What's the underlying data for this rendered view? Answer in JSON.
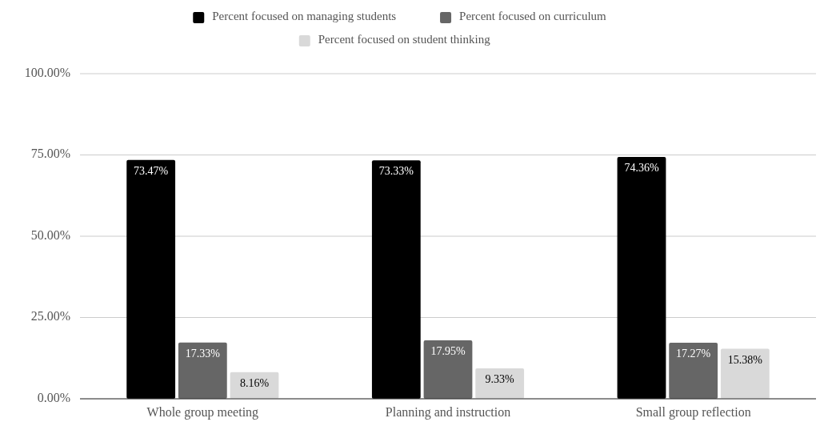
{
  "chart_data": {
    "type": "bar",
    "categories": [
      "Whole group meeting",
      "Planning and instruction",
      "Small group reflection"
    ],
    "series": [
      {
        "name": "Percent focused on managing students",
        "color": "#000000",
        "values": [
          73.47,
          73.33,
          74.36
        ],
        "value_labels": [
          "73.47%",
          "73.33%",
          "74.36%"
        ]
      },
      {
        "name": "Percent focused on curriculum",
        "color": "#666666",
        "values": [
          17.33,
          17.95,
          17.27
        ],
        "value_labels": [
          "17.33%",
          "17.95%",
          "17.27%"
        ]
      },
      {
        "name": "Percent focused on student thinking",
        "color": "#d9d9d9",
        "values": [
          8.16,
          9.33,
          15.38
        ],
        "value_labels": [
          "8.16%",
          "9.33%",
          "15.38%"
        ]
      }
    ],
    "ylim": [
      0,
      100
    ],
    "yticks": [
      {
        "value": 0,
        "label": "0.00%"
      },
      {
        "value": 25,
        "label": "25.00%"
      },
      {
        "value": 50,
        "label": "50.00%"
      },
      {
        "value": 75,
        "label": "75.00%"
      },
      {
        "value": 100,
        "label": "100.00%"
      }
    ],
    "grid": "y",
    "legend": "top"
  }
}
